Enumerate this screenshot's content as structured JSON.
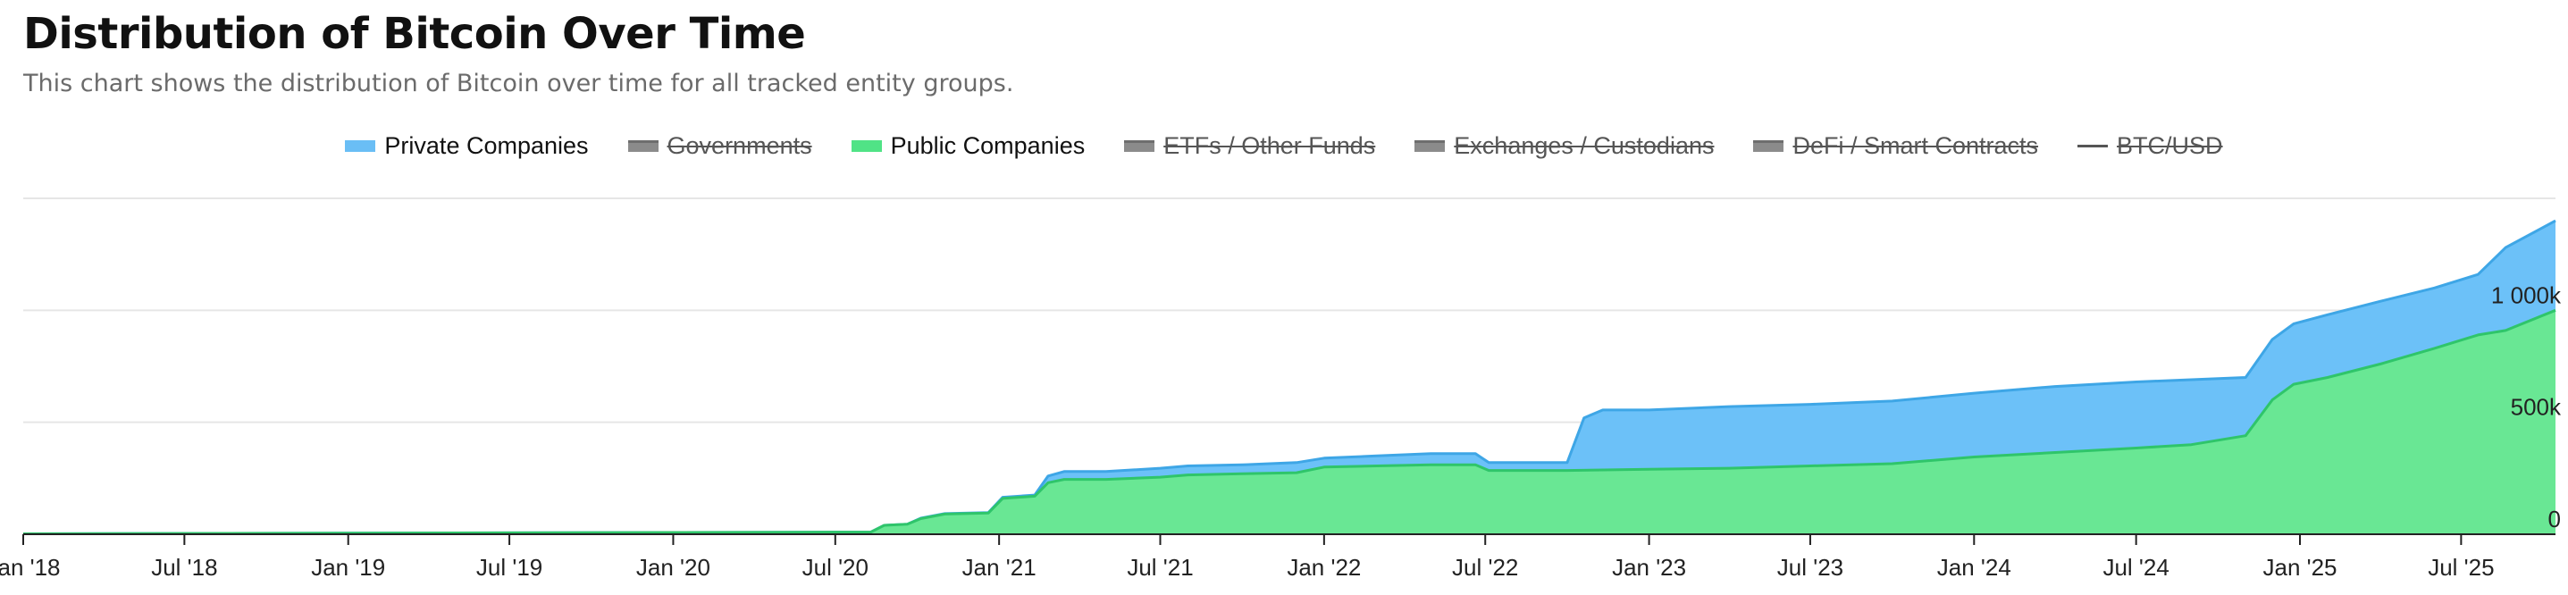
{
  "chart_data": {
    "type": "area",
    "title": "Distribution of Bitcoin Over Time",
    "subtitle": "This chart shows the distribution of Bitcoin over time for all tracked entity groups.",
    "x_start": "2018-01-01",
    "x_end": "2025-10-15",
    "x_ticks": [
      "Jan '18",
      "Jul '18",
      "Jan '19",
      "Jul '19",
      "Jan '20",
      "Jul '20",
      "Jan '21",
      "Jul '21",
      "Jan '22",
      "Jul '22",
      "Jan '23",
      "Jul '23",
      "Jan '24",
      "Jul '24",
      "Jan '25",
      "Jul '25"
    ],
    "y_ticks": [
      "0",
      "500k",
      "1 000k"
    ],
    "ylim": [
      0,
      1500000
    ],
    "y_tick_values": [
      0,
      500000,
      1000000
    ],
    "stacked": true,
    "legend": [
      {
        "name": "Private Companies",
        "visible": true,
        "color": "#5ab8f5",
        "marker": "area"
      },
      {
        "name": "Governments",
        "visible": false,
        "color": "#666666",
        "marker": "area"
      },
      {
        "name": "Public Companies",
        "visible": true,
        "color": "#3ee07a",
        "marker": "area"
      },
      {
        "name": "ETFs / Other Funds",
        "visible": false,
        "color": "#666666",
        "marker": "area"
      },
      {
        "name": "Exchanges / Custodians",
        "visible": false,
        "color": "#666666",
        "marker": "area"
      },
      {
        "name": "DeFi / Smart Contracts",
        "visible": false,
        "color": "#666666",
        "marker": "area"
      },
      {
        "name": "BTC/USD",
        "visible": false,
        "color": "#555555",
        "marker": "line"
      }
    ],
    "series": [
      {
        "name": "Public Companies",
        "fill": "#69e794",
        "stroke": "#2fc56a",
        "points": [
          [
            "2018-01-01",
            2000
          ],
          [
            "2019-01-01",
            5000
          ],
          [
            "2020-01-01",
            8000
          ],
          [
            "2020-08-10",
            10000
          ],
          [
            "2020-08-25",
            40000
          ],
          [
            "2020-09-20",
            45000
          ],
          [
            "2020-10-05",
            70000
          ],
          [
            "2020-11-01",
            90000
          ],
          [
            "2020-12-20",
            95000
          ],
          [
            "2021-01-05",
            160000
          ],
          [
            "2021-02-10",
            170000
          ],
          [
            "2021-02-25",
            230000
          ],
          [
            "2021-03-15",
            245000
          ],
          [
            "2021-05-01",
            245000
          ],
          [
            "2021-07-01",
            255000
          ],
          [
            "2021-08-01",
            265000
          ],
          [
            "2021-10-01",
            270000
          ],
          [
            "2021-12-01",
            275000
          ],
          [
            "2022-01-01",
            300000
          ],
          [
            "2022-03-01",
            305000
          ],
          [
            "2022-05-01",
            310000
          ],
          [
            "2022-06-20",
            310000
          ],
          [
            "2022-07-05",
            285000
          ],
          [
            "2022-10-01",
            285000
          ],
          [
            "2023-01-01",
            290000
          ],
          [
            "2023-04-01",
            295000
          ],
          [
            "2023-07-01",
            305000
          ],
          [
            "2023-10-01",
            315000
          ],
          [
            "2024-01-01",
            345000
          ],
          [
            "2024-04-01",
            365000
          ],
          [
            "2024-07-01",
            385000
          ],
          [
            "2024-09-01",
            400000
          ],
          [
            "2024-11-01",
            440000
          ],
          [
            "2024-12-01",
            600000
          ],
          [
            "2024-12-25",
            670000
          ],
          [
            "2025-02-01",
            700000
          ],
          [
            "2025-04-01",
            760000
          ],
          [
            "2025-06-01",
            830000
          ],
          [
            "2025-07-20",
            890000
          ],
          [
            "2025-08-20",
            910000
          ],
          [
            "2025-10-15",
            1000000
          ]
        ]
      },
      {
        "name": "Private Companies",
        "fill": "#6cc1f8",
        "stroke": "#3ea6e6",
        "points": [
          [
            "2018-01-01",
            2000
          ],
          [
            "2019-01-01",
            5000
          ],
          [
            "2020-01-01",
            8000
          ],
          [
            "2020-08-10",
            10000
          ],
          [
            "2020-08-25",
            40000
          ],
          [
            "2020-09-20",
            45000
          ],
          [
            "2020-10-05",
            72000
          ],
          [
            "2020-11-01",
            92000
          ],
          [
            "2020-12-20",
            97000
          ],
          [
            "2021-01-05",
            165000
          ],
          [
            "2021-02-10",
            175000
          ],
          [
            "2021-02-25",
            260000
          ],
          [
            "2021-03-15",
            280000
          ],
          [
            "2021-05-01",
            280000
          ],
          [
            "2021-07-01",
            295000
          ],
          [
            "2021-08-01",
            305000
          ],
          [
            "2021-10-01",
            310000
          ],
          [
            "2021-12-01",
            320000
          ],
          [
            "2022-01-01",
            340000
          ],
          [
            "2022-03-01",
            350000
          ],
          [
            "2022-05-01",
            360000
          ],
          [
            "2022-06-20",
            360000
          ],
          [
            "2022-07-05",
            320000
          ],
          [
            "2022-10-01",
            320000
          ],
          [
            "2022-10-20",
            520000
          ],
          [
            "2022-11-10",
            555000
          ],
          [
            "2023-01-01",
            555000
          ],
          [
            "2023-04-01",
            570000
          ],
          [
            "2023-07-01",
            580000
          ],
          [
            "2023-10-01",
            595000
          ],
          [
            "2024-01-01",
            630000
          ],
          [
            "2024-04-01",
            660000
          ],
          [
            "2024-07-01",
            680000
          ],
          [
            "2024-09-01",
            690000
          ],
          [
            "2024-11-01",
            700000
          ],
          [
            "2024-12-01",
            870000
          ],
          [
            "2024-12-25",
            940000
          ],
          [
            "2025-02-01",
            980000
          ],
          [
            "2025-04-01,",
            1040000
          ],
          [
            "2025-06-01",
            1100000
          ],
          [
            "2025-07-20",
            1160000
          ],
          [
            "2025-08-20",
            1280000
          ],
          [
            "2025-10-15",
            1400000
          ]
        ]
      }
    ]
  }
}
